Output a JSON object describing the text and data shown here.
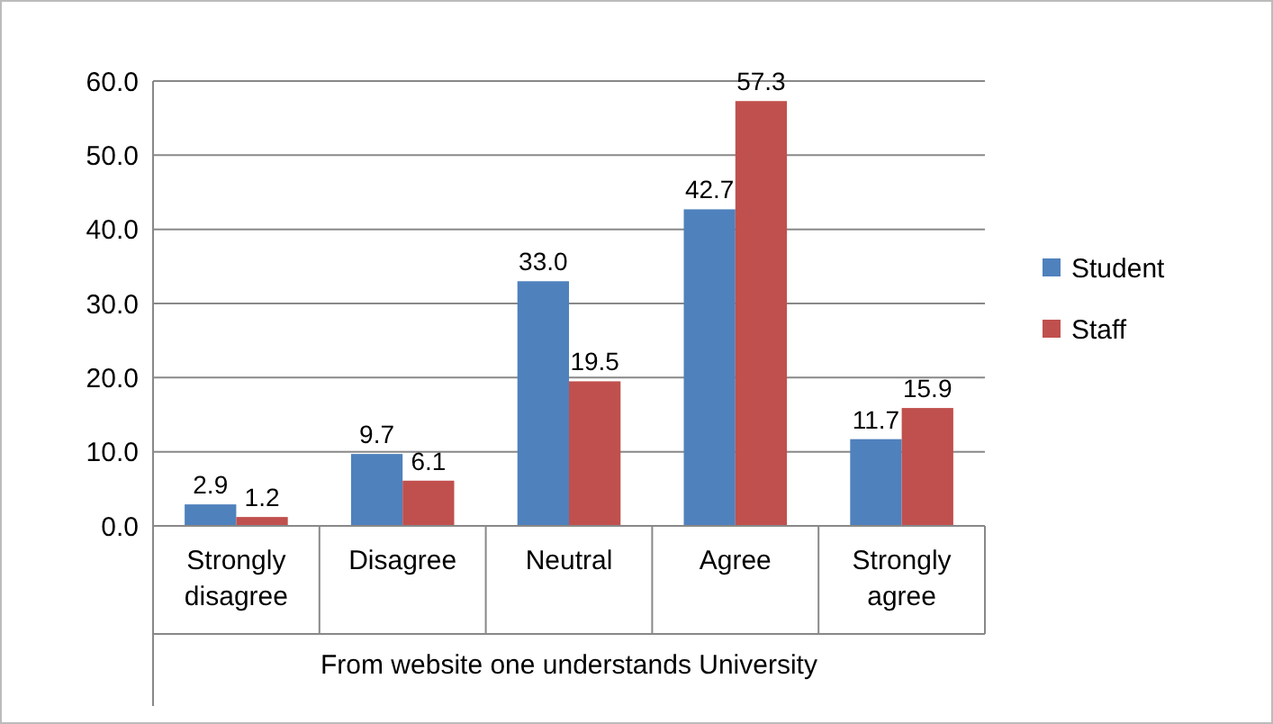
{
  "chart_data": {
    "type": "bar",
    "xlabel": "From website one understands University",
    "categories": [
      "Strongly disagree",
      "Disagree",
      "Neutral",
      "Agree",
      "Strongly agree"
    ],
    "series": [
      {
        "name": "Student",
        "color": "#4f81bd",
        "values": [
          2.9,
          9.7,
          33.0,
          42.7,
          11.7
        ],
        "value_labels": [
          "2.9",
          "9.7",
          "33.0",
          "42.7",
          "11.7"
        ]
      },
      {
        "name": "Staff",
        "color": "#c0504d",
        "values": [
          1.2,
          6.1,
          19.5,
          57.3,
          15.9
        ],
        "value_labels": [
          "1.2",
          "6.1",
          "19.5",
          "57.3",
          "15.9"
        ]
      }
    ],
    "ylim": [
      0,
      60
    ],
    "yticks": [
      {
        "value": 0,
        "label": "0.0"
      },
      {
        "value": 10,
        "label": "10.0"
      },
      {
        "value": 20,
        "label": "20.0"
      },
      {
        "value": 30,
        "label": "30.0"
      },
      {
        "value": 40,
        "label": "40.0"
      },
      {
        "value": 50,
        "label": "50.0"
      },
      {
        "value": 60,
        "label": "60.0"
      }
    ],
    "grid": "y",
    "legend": "right"
  }
}
